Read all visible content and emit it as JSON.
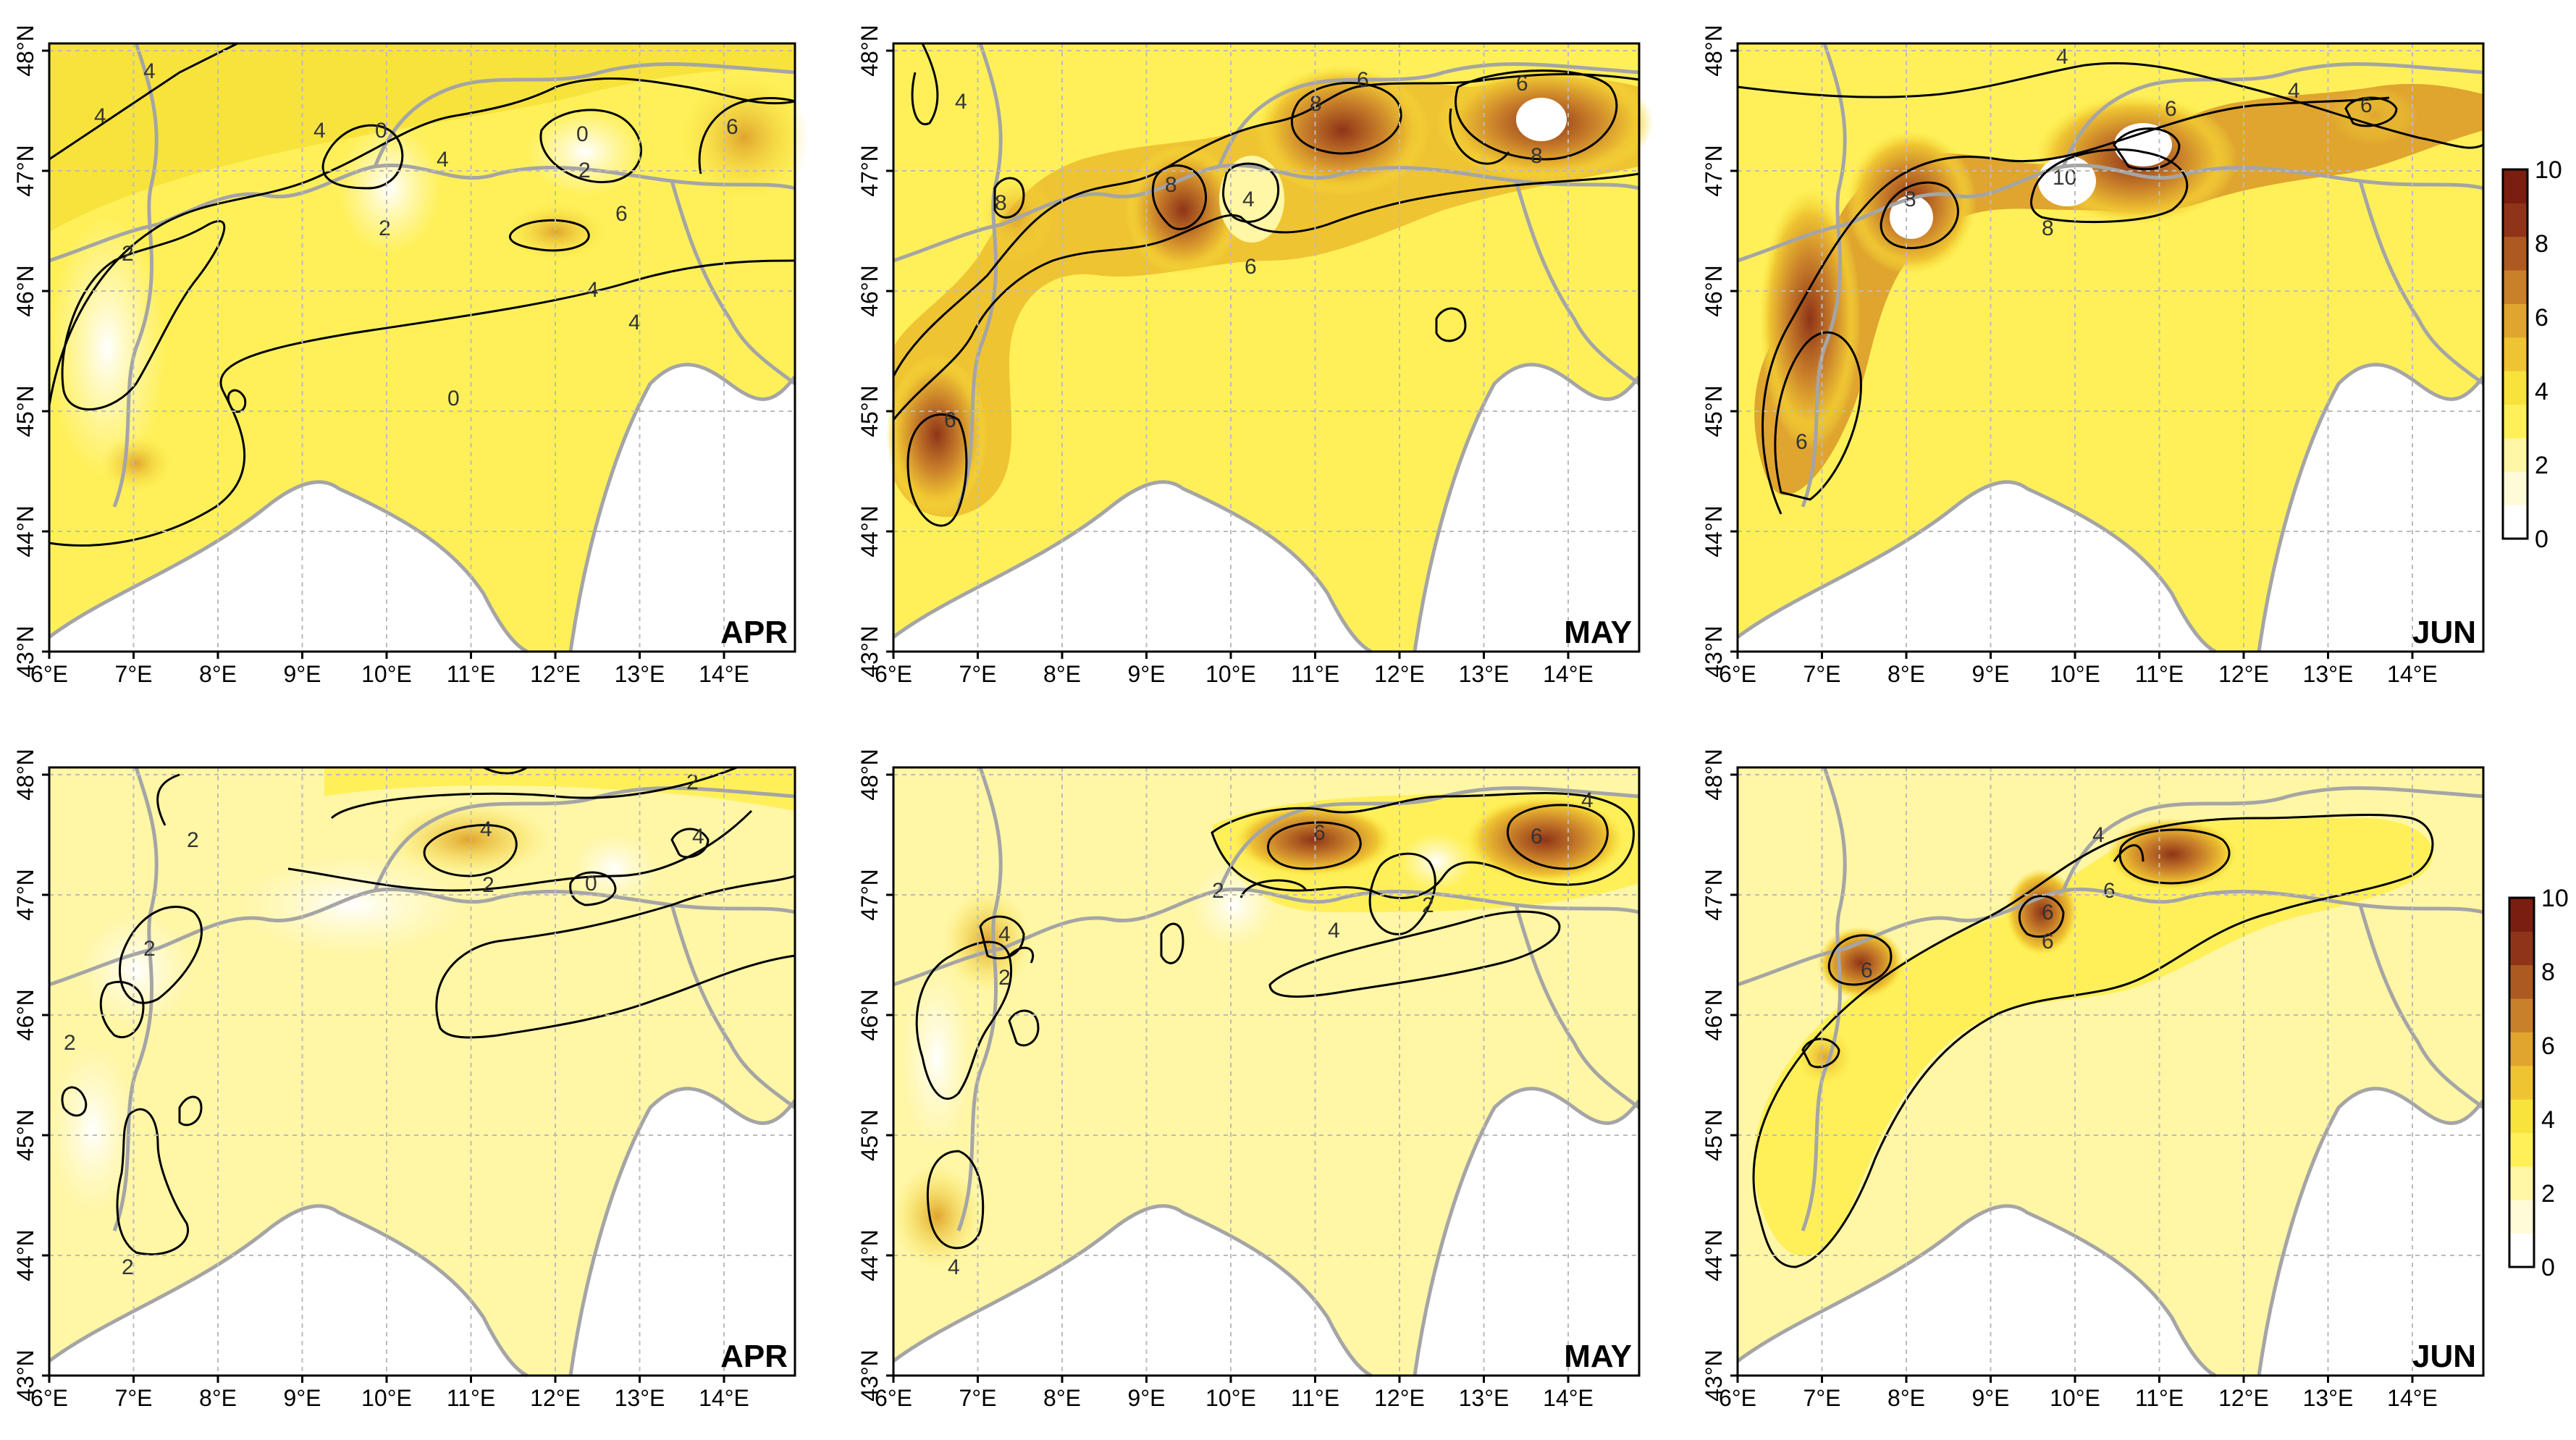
{
  "colorbar": {
    "ticks": [
      "0",
      "2",
      "4",
      "6",
      "8",
      "10"
    ],
    "colors": [
      "#ffffff",
      "#fffbd9",
      "#fff6a6",
      "#fff05a",
      "#f7e33c",
      "#efc432",
      "#e0a52e",
      "#c9802a",
      "#ad5a22",
      "#8f3418",
      "#7a1e10"
    ]
  },
  "axes": {
    "x_ticks": [
      "6°E",
      "7°E",
      "8°E",
      "9°E",
      "10°E",
      "11°E",
      "12°E",
      "13°E",
      "14°E"
    ],
    "y_ticks": [
      "43°N",
      "44°N",
      "45°N",
      "46°N",
      "47°N",
      "48°N"
    ]
  },
  "colors": {
    "land_border": "#a5a5a5",
    "contour": "#000000",
    "grid": "#bbbbbb",
    "sea": "#ffffff"
  },
  "panels": [
    {
      "month": "APR",
      "contour_labels": [
        "4",
        "4",
        "4",
        "4",
        "0",
        "2",
        "2",
        "0",
        "6",
        "6",
        "2",
        "4",
        "4",
        "0"
      ]
    },
    {
      "month": "MAY",
      "contour_labels": [
        "4",
        "6",
        "8",
        "8",
        "4",
        "6",
        "8",
        "6",
        "8",
        "6"
      ]
    },
    {
      "month": "JUN",
      "contour_labels": [
        "4",
        "4",
        "6",
        "6",
        "8",
        "10",
        "8",
        "6"
      ]
    },
    {
      "month": "APR",
      "contour_labels": [
        "2",
        "2",
        "2",
        "4",
        "2",
        "4",
        "0",
        "2",
        "2",
        "2"
      ]
    },
    {
      "month": "MAY",
      "contour_labels": [
        "4",
        "2",
        "6",
        "2",
        "6",
        "4",
        "4",
        "2",
        "4"
      ]
    },
    {
      "month": "JUN",
      "contour_labels": [
        "4",
        "6",
        "6",
        "6",
        "6"
      ]
    }
  ]
}
